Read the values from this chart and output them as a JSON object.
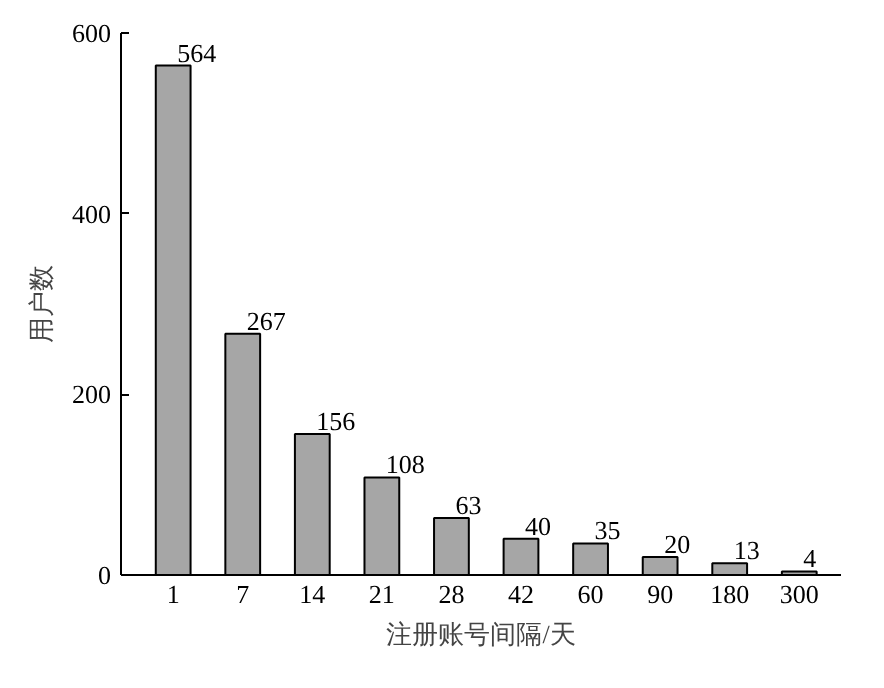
{
  "chart_data": {
    "type": "bar",
    "xlabel": "注册账号间隔/天",
    "ylabel": "用户数",
    "categories": [
      "1",
      "7",
      "14",
      "21",
      "28",
      "42",
      "60",
      "90",
      "180",
      "300"
    ],
    "values": [
      564,
      267,
      156,
      108,
      63,
      40,
      35,
      20,
      13,
      4
    ],
    "color": "#a6a6a6",
    "ylim": [
      0,
      600
    ],
    "yticks": [
      0,
      200,
      400,
      600
    ],
    "data_labels": true,
    "grid": false
  }
}
